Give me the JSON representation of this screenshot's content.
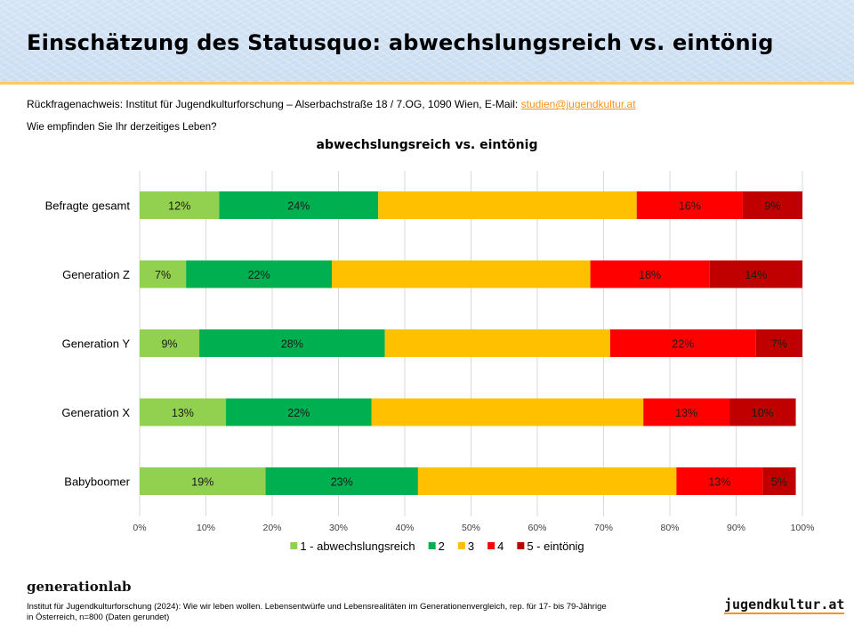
{
  "header": {
    "title": "Einschätzung des Statusquo: abwechslungsreich vs. eintönig"
  },
  "contact": {
    "text": "Rückfragenachweis: Institut für Jugendkulturforschung – Alserbachstraße 18 / 7.OG, 1090 Wien, E-Mail: ",
    "email": "studien@jugendkultur.at"
  },
  "question": "Wie empfinden Sie Ihr derzeitiges Leben?",
  "chart_data": {
    "type": "bar",
    "orientation": "horizontal",
    "stacked": true,
    "title": "abwechslungsreich vs. eintönig",
    "xlabel": "",
    "ylabel": "",
    "xlim": [
      0,
      100
    ],
    "x_ticks": [
      "0%",
      "10%",
      "20%",
      "30%",
      "40%",
      "50%",
      "60%",
      "70%",
      "80%",
      "90%",
      "100%"
    ],
    "grid": true,
    "legend_position": "bottom",
    "categories": [
      "Befragte gesamt",
      "Generation Z",
      "Generation Y",
      "Generation X",
      "Babyboomer"
    ],
    "series": [
      {
        "name": "1 - abwechslungsreich",
        "color": "#92d050",
        "values": [
          12,
          7,
          9,
          13,
          19
        ],
        "labels_shown": true
      },
      {
        "name": "2",
        "color": "#00b050",
        "values": [
          24,
          22,
          28,
          22,
          23
        ],
        "labels_shown": true
      },
      {
        "name": "3",
        "color": "#ffc000",
        "values": [
          39,
          39,
          34,
          41,
          39
        ],
        "labels_shown": false
      },
      {
        "name": "4",
        "color": "#ff0000",
        "values": [
          16,
          18,
          22,
          13,
          13
        ],
        "labels_shown": true
      },
      {
        "name": "5 - eintönig",
        "color": "#c00000",
        "values": [
          9,
          14,
          7,
          10,
          5
        ],
        "labels_shown": true
      }
    ]
  },
  "footer": {
    "brand": "generationlab",
    "source_line1": "Institut für Jugendkulturforschung (2024): Wie wir leben wollen. Lebensentwürfe und Lebensrealitäten im Generationenvergleich, rep. für 17- bis 79-Jährige",
    "source_line2": "in Österreich, n=800 (Daten gerundet)",
    "logo_text": "jugendkultur.at"
  }
}
